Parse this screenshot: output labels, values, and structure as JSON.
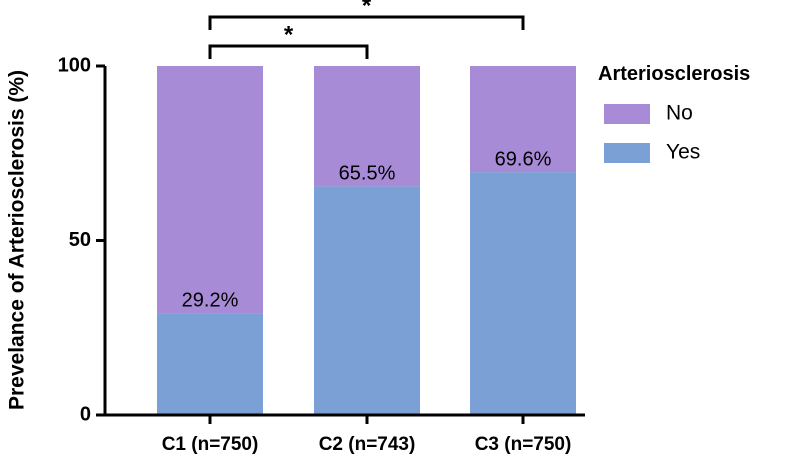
{
  "chart_data": {
    "type": "bar",
    "stacked": true,
    "title": "",
    "xlabel": "",
    "ylabel": "Prevelance of Arteriosclerosis (%)",
    "ylim": [
      0,
      100
    ],
    "yticks": [
      "0",
      "50",
      "100"
    ],
    "categories": [
      "C1 (n=750)",
      "C2 (n=743)",
      "C3 (n=750)"
    ],
    "series": [
      {
        "name": "Yes",
        "values": [
          29.2,
          65.5,
          69.6
        ],
        "color": "#7ba0d5"
      },
      {
        "name": "No",
        "values": [
          70.8,
          34.5,
          30.4
        ],
        "color": "#a78bd6"
      }
    ],
    "data_labels": [
      "29.2%",
      "65.5%",
      "69.6%"
    ],
    "legend": {
      "title": "Arteriosclerosis",
      "position": "right",
      "entries": [
        {
          "label": "No",
          "color": "#a78bd6"
        },
        {
          "label": "Yes",
          "color": "#7ba0d5"
        }
      ]
    },
    "significance": [
      {
        "from": "C1 (n=750)",
        "to": "C2 (n=743)",
        "label": "*"
      },
      {
        "from": "C1 (n=750)",
        "to": "C3 (n=750)",
        "label": "*"
      }
    ]
  }
}
